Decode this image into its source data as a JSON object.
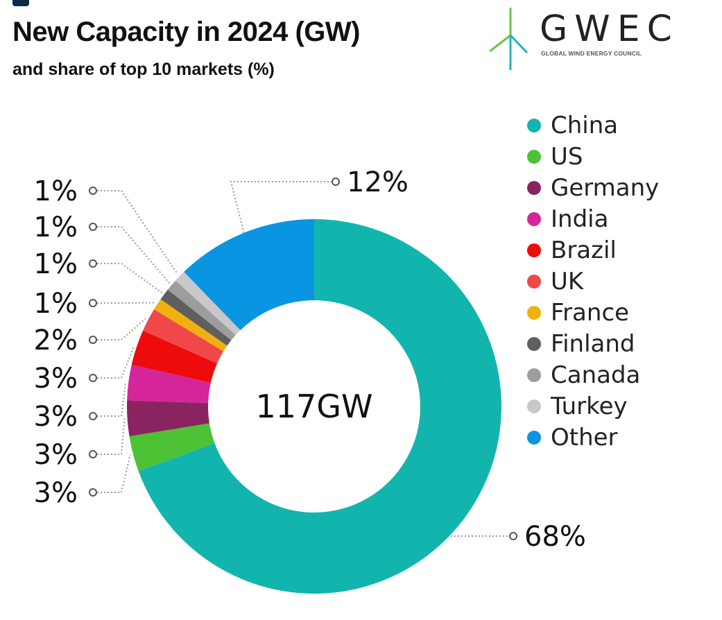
{
  "title": "New Capacity in 2024 (GW)",
  "subtitle": "and share of top 10 markets (%)",
  "logo": {
    "word": "GWEC",
    "tagline": "GLOBAL WIND ENERGY COUNCIL"
  },
  "chart_data": {
    "type": "pie",
    "variant": "donut",
    "title": "New Capacity in 2024 (GW)",
    "subtitle": "and share of top 10 markets (%)",
    "center_label": "117GW",
    "unit": "%",
    "legend_position": "right",
    "slices": [
      {
        "name": "China",
        "value": 68,
        "label": "68%",
        "color": "#12b5ae"
      },
      {
        "name": "US",
        "value": 3,
        "label": "3%",
        "color": "#4cc234"
      },
      {
        "name": "Germany",
        "value": 3,
        "label": "3%",
        "color": "#8a2461"
      },
      {
        "name": "India",
        "value": 3,
        "label": "3%",
        "color": "#d4259a"
      },
      {
        "name": "Brazil",
        "value": 3,
        "label": "3%",
        "color": "#ee0b0b"
      },
      {
        "name": "UK",
        "value": 2,
        "label": "2%",
        "color": "#f04848"
      },
      {
        "name": "France",
        "value": 1,
        "label": "1%",
        "color": "#f0b010"
      },
      {
        "name": "Finland",
        "value": 1,
        "label": "1%",
        "color": "#5f5f5f"
      },
      {
        "name": "Canada",
        "value": 1,
        "label": "1%",
        "color": "#9d9d9d"
      },
      {
        "name": "Turkey",
        "value": 1,
        "label": "1%",
        "color": "#c8c8c8"
      },
      {
        "name": "Other",
        "value": 12,
        "label": "12%",
        "color": "#0a95e2"
      }
    ]
  }
}
